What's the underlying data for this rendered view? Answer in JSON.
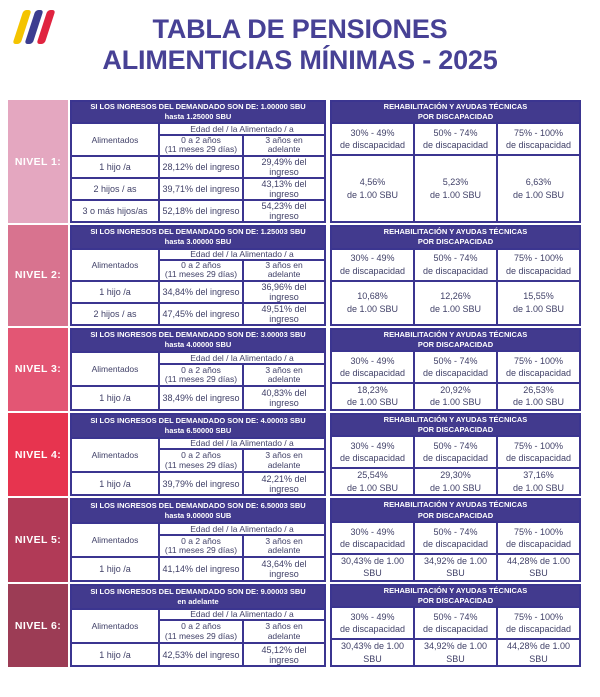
{
  "title": {
    "line1": "TABLA DE PENSIONES",
    "line2": "ALIMENTICIAS MÍNIMAS - 2025"
  },
  "logo": {
    "stripes": [
      "#f4c400",
      "#3c3d90",
      "#e02440"
    ],
    "stripe_names": [
      "yellow-stripe",
      "blue-stripe",
      "red-stripe"
    ]
  },
  "colors": {
    "accent_purple": "#423a8e",
    "border_purple": "#3b3590",
    "title_purple": "#474195",
    "body_text": "#414168"
  },
  "common": {
    "alimentados": "Alimentados",
    "edad": "Edad del / la Alimentado / a",
    "age_0_2": "0 a 2 años\n(11 meses 29 días)",
    "age_3": "3 años en\nadelante",
    "rehab": "REHABILITACIÓN Y AYUDAS TÉCNICAS\nPOR DISCAPACIDAD",
    "disability_headers": [
      "30% - 49%\nde discapacidad",
      "50% - 74%\nde discapacidad",
      "75% - 100%\nde discapacidad"
    ]
  },
  "levels": [
    {
      "name": "NIVEL 1:",
      "color": "#e4a7c0",
      "income": "SI LOS INGRESOS DEL DEMANDADO SON DE: 1.00000 SBU\nhasta 1.25000 SBU",
      "rows": [
        {
          "label": "1 hijo /a",
          "v1": "28,12% del ingreso",
          "v2": "29,49% del ingreso"
        },
        {
          "label": "2 hijos / as",
          "v1": "39,71% del ingreso",
          "v2": "43,13% del ingreso"
        },
        {
          "label": "3 o más hijos/as",
          "v1": "52,18% del ingreso",
          "v2": "54,23% del ingreso"
        }
      ],
      "disability": [
        "4,56%\nde 1.00 SBU",
        "5,23%\nde 1.00 SBU",
        "6,63%\nde 1.00 SBU"
      ]
    },
    {
      "name": "NIVEL 2:",
      "color": "#d8738f",
      "income": "SI LOS INGRESOS DEL DEMANDADO SON DE: 1.25003 SBU\nhasta 3.00000 SBU",
      "rows": [
        {
          "label": "1 hijo /a",
          "v1": "34,84% del ingreso",
          "v2": "36,96% del ingreso"
        },
        {
          "label": "2 hijos / as",
          "v1": "47,45% del ingreso",
          "v2": "49,51% del ingreso"
        }
      ],
      "disability": [
        "10,68%\nde 1.00 SBU",
        "12,26%\nde 1.00 SBU",
        "15,55%\nde 1.00 SBU"
      ]
    },
    {
      "name": "NIVEL 3:",
      "color": "#e35674",
      "income": "SI LOS INGRESOS DEL DEMANDADO SON DE: 3.00003 SBU\nhasta 4.00000 SBU",
      "rows": [
        {
          "label": "1 hijo /a",
          "v1": "38,49% del ingreso",
          "v2": "40,83% del ingreso"
        }
      ],
      "disability": [
        "18,23%\nde 1.00 SBU",
        "20,92%\nde 1.00 SBU",
        "26,53%\nde 1.00 SBU"
      ]
    },
    {
      "name": "NIVEL 4:",
      "color": "#e7344f",
      "income": "SI LOS INGRESOS DEL DEMANDADO SON DE: 4.00003 SBU\nhasta 6.50000 SBU",
      "rows": [
        {
          "label": "1 hijo /a",
          "v1": "39,79% del ingreso",
          "v2": "42,21% del ingreso"
        }
      ],
      "disability": [
        "25,54%\nde 1.00 SBU",
        "29,30%\nde 1.00 SBU",
        "37,16%\nde 1.00 SBU"
      ]
    },
    {
      "name": "NIVEL 5:",
      "color": "#b13a57",
      "income": "SI LOS INGRESOS DEL DEMANDADO SON DE: 6.50003 SBU\nhasta 9.00000 SUB",
      "rows": [
        {
          "label": "1 hijo /a",
          "v1": "41,14% del ingreso",
          "v2": "43,64% del ingreso"
        }
      ],
      "disability": [
        "30,43% de 1.00 SBU",
        "34,92% de 1.00 SBU",
        "44,28% de 1.00 SBU"
      ]
    },
    {
      "name": "NIVEL 6:",
      "color": "#9c3c55",
      "income": "SI LOS INGRESOS DEL DEMANDADO SON DE: 9.00003 SBU\nen adelante",
      "rows": [
        {
          "label": "1 hijo /a",
          "v1": "42,53% del ingreso",
          "v2": "45,12% del ingreso"
        }
      ],
      "disability": [
        "30,43% de 1.00 SBU",
        "34,92% de 1.00 SBU",
        "44,28% de 1.00 SBU"
      ]
    }
  ]
}
